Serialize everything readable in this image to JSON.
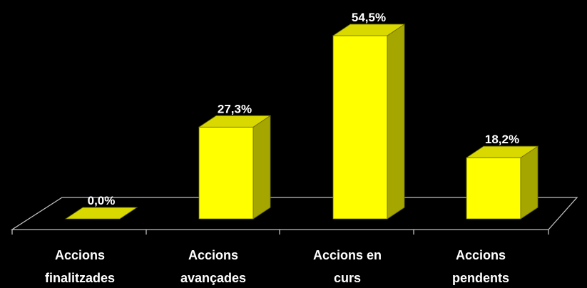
{
  "chart_data": {
    "type": "bar",
    "categories": [
      [
        "Accions",
        "finalitzades"
      ],
      [
        "Accions",
        "avançades"
      ],
      [
        "Accions en",
        "curs"
      ],
      [
        "Accions",
        "pendents"
      ]
    ],
    "values": [
      0.0,
      27.3,
      54.5,
      18.2
    ],
    "data_labels": [
      "0,0%",
      "27,3%",
      "54,5%",
      "18,2%"
    ],
    "title": "",
    "xlabel": "",
    "ylabel": "",
    "ylim": [
      0,
      60
    ],
    "grid": false,
    "legend": "none",
    "style": "3d-column",
    "colors": {
      "background": "#000000",
      "bar_front": "#ffff00",
      "bar_top": "#d9d900",
      "bar_side": "#a6a600",
      "floor_edge": "#bfbfbf",
      "text": "#ffffff"
    }
  }
}
